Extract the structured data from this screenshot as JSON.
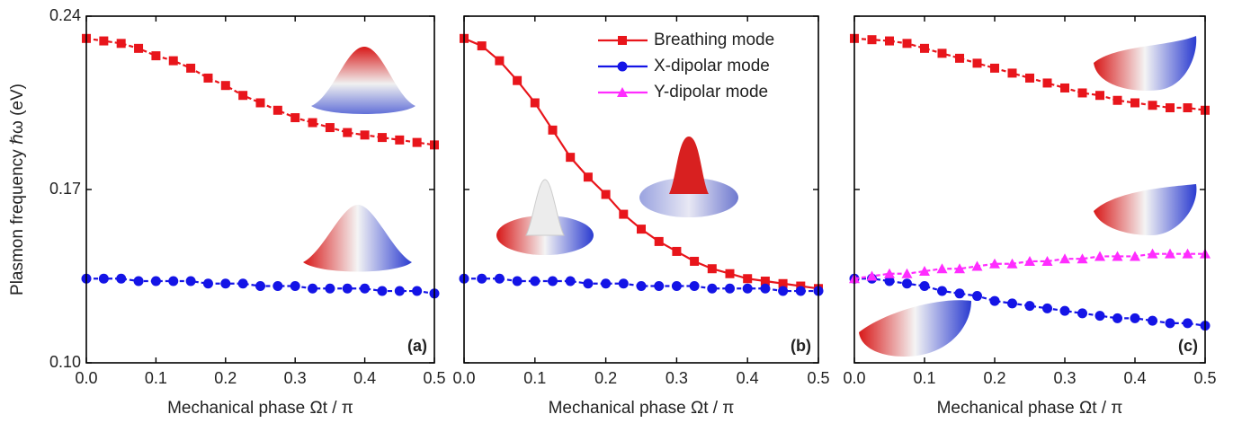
{
  "chart_data": [
    {
      "type": "line",
      "xlabel": "Mechanical phase Ωt / π",
      "ylabel": "Plasmon frequency ℏω (eV)",
      "panel_label": "(a)",
      "x": [
        0,
        0.025,
        0.05,
        0.075,
        0.1,
        0.125,
        0.15,
        0.175,
        0.2,
        0.225,
        0.25,
        0.275,
        0.3,
        0.325,
        0.35,
        0.375,
        0.4,
        0.425,
        0.45,
        0.475,
        0.5
      ],
      "xlim": [
        0,
        0.5
      ],
      "xticks": [
        {
          "value": 0,
          "label": "0.0"
        },
        0.1,
        0.2,
        0.3,
        0.4,
        0.5
      ],
      "ylim": [
        0.1,
        0.24
      ],
      "yticks": [
        {
          "value": 0.1,
          "label": "0.10"
        },
        0.17,
        0.24
      ],
      "show_ytick_labels": true,
      "series": [
        {
          "color": "#e8151b",
          "marker": "square",
          "linestyle": "dashed",
          "values": [
            0.231,
            0.23,
            0.229,
            0.227,
            0.224,
            0.222,
            0.219,
            0.215,
            0.212,
            0.208,
            0.205,
            0.202,
            0.199,
            0.197,
            0.195,
            0.193,
            0.192,
            0.191,
            0.19,
            0.189,
            0.188
          ]
        },
        {
          "color": "#1414e6",
          "marker": "circle",
          "linestyle": "dashed",
          "values": [
            0.134,
            0.134,
            0.134,
            0.133,
            0.133,
            0.133,
            0.133,
            0.132,
            0.132,
            0.132,
            0.131,
            0.131,
            0.131,
            0.13,
            0.13,
            0.13,
            0.13,
            0.129,
            0.129,
            0.129,
            0.128
          ]
        }
      ]
    },
    {
      "type": "line",
      "xlabel": "Mechanical phase Ωt / π",
      "panel_label": "(b)",
      "x": [
        0,
        0.025,
        0.05,
        0.075,
        0.1,
        0.125,
        0.15,
        0.175,
        0.2,
        0.225,
        0.25,
        0.275,
        0.3,
        0.325,
        0.35,
        0.375,
        0.4,
        0.425,
        0.45,
        0.475,
        0.5
      ],
      "xlim": [
        0,
        0.5
      ],
      "xticks": [
        {
          "value": 0,
          "label": "0.0"
        },
        0.1,
        0.2,
        0.3,
        0.4,
        0.5
      ],
      "ylim": [
        0.1,
        0.24
      ],
      "yticks": [
        0.1,
        0.17,
        0.24
      ],
      "show_ytick_labels": false,
      "series": [
        {
          "color": "#e8151b",
          "marker": "square",
          "linestyle": "solid",
          "values": [
            0.231,
            0.228,
            0.222,
            0.214,
            0.205,
            0.194,
            0.183,
            0.175,
            0.168,
            0.16,
            0.154,
            0.149,
            0.145,
            0.141,
            0.138,
            0.136,
            0.134,
            0.133,
            0.132,
            0.131,
            0.13
          ]
        },
        {
          "color": "#1414e6",
          "marker": "circle",
          "linestyle": "dashed",
          "values": [
            0.134,
            0.134,
            0.134,
            0.133,
            0.133,
            0.133,
            0.133,
            0.132,
            0.132,
            0.132,
            0.131,
            0.131,
            0.131,
            0.131,
            0.13,
            0.13,
            0.13,
            0.13,
            0.129,
            0.129,
            0.129
          ]
        }
      ]
    },
    {
      "type": "line",
      "xlabel": "Mechanical phase Ωt / π",
      "panel_label": "(c)",
      "legend": "upper right of panel (b)",
      "x": [
        0,
        0.025,
        0.05,
        0.075,
        0.1,
        0.125,
        0.15,
        0.175,
        0.2,
        0.225,
        0.25,
        0.275,
        0.3,
        0.325,
        0.35,
        0.375,
        0.4,
        0.425,
        0.45,
        0.475,
        0.5
      ],
      "xlim": [
        0,
        0.5
      ],
      "xticks": [
        {
          "value": 0,
          "label": "0.0"
        },
        0.1,
        0.2,
        0.3,
        0.4,
        0.5
      ],
      "ylim": [
        0.1,
        0.24
      ],
      "yticks": [
        0.1,
        0.17,
        0.24
      ],
      "show_ytick_labels": false,
      "series": [
        {
          "name": "Breathing mode",
          "color": "#e8151b",
          "marker": "square",
          "linestyle": "dashed",
          "values": [
            0.231,
            0.2305,
            0.23,
            0.229,
            0.227,
            0.225,
            0.223,
            0.221,
            0.219,
            0.217,
            0.215,
            0.213,
            0.211,
            0.209,
            0.208,
            0.206,
            0.205,
            0.204,
            0.203,
            0.203,
            0.202
          ]
        },
        {
          "name": "X-dipolar  mode",
          "color": "#1414e6",
          "marker": "circle",
          "linestyle": "dashed",
          "values": [
            0.134,
            0.134,
            0.133,
            0.132,
            0.131,
            0.129,
            0.128,
            0.127,
            0.125,
            0.124,
            0.123,
            0.122,
            0.121,
            0.12,
            0.119,
            0.118,
            0.118,
            0.117,
            0.116,
            0.116,
            0.115
          ]
        },
        {
          "name": "Y-dipolar  mode",
          "color": "#ff2cff",
          "marker": "triangle",
          "linestyle": "dashed",
          "values": [
            0.134,
            0.135,
            0.136,
            0.136,
            0.137,
            0.138,
            0.138,
            0.139,
            0.14,
            0.14,
            0.141,
            0.141,
            0.142,
            0.142,
            0.143,
            0.143,
            0.143,
            0.144,
            0.144,
            0.144,
            0.144
          ]
        }
      ]
    }
  ]
}
